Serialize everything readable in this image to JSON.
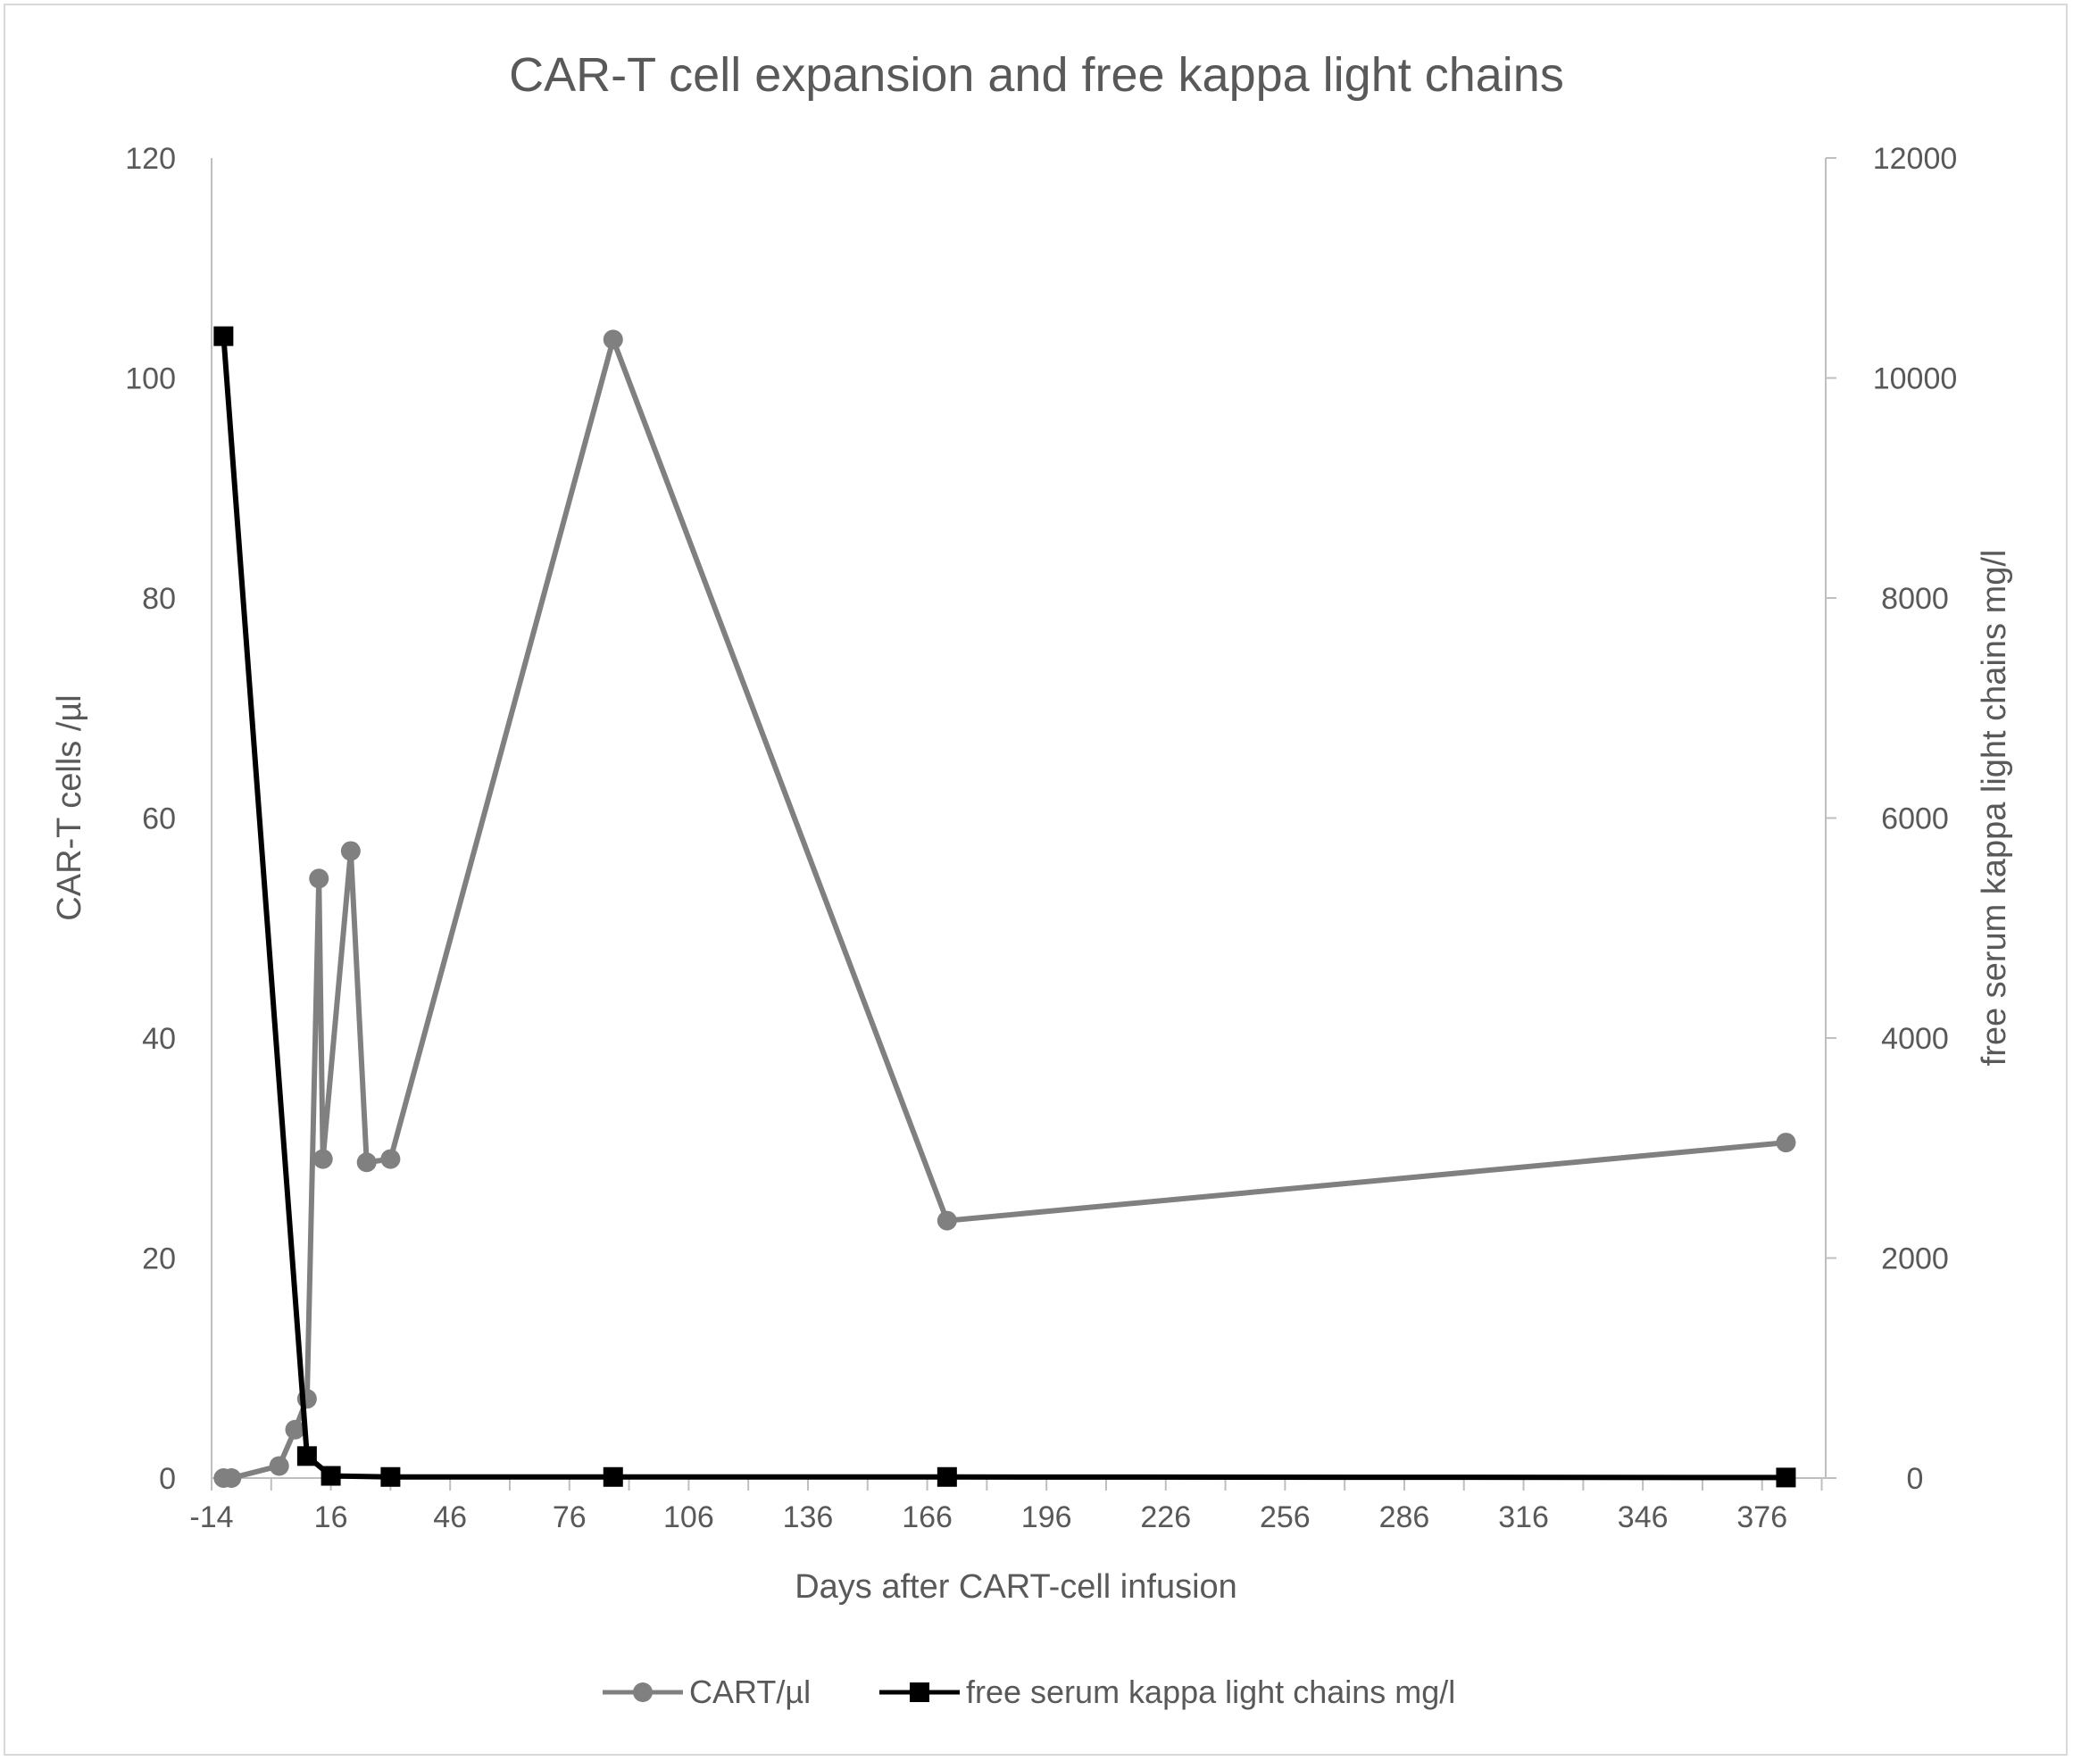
{
  "chart_data": {
    "type": "line",
    "title": "CAR-T cell expansion and free kappa light chains",
    "xlabel": "Days after CART-cell infusion",
    "ylabel": "CAR-T cells /µl",
    "y2label": "free serum kappa light chains mg/l",
    "xlim": [
      -14,
      392
    ],
    "ylim": [
      0,
      120
    ],
    "y2lim": [
      0,
      12000
    ],
    "x_ticks": [
      "-14",
      "16",
      "46",
      "76",
      "106",
      "136",
      "166",
      "196",
      "226",
      "256",
      "286",
      "316",
      "346",
      "376"
    ],
    "y_ticks": [
      "0",
      "20",
      "40",
      "60",
      "80",
      "100",
      "120"
    ],
    "y2_ticks": [
      "0",
      "2000",
      "4000",
      "6000",
      "8000",
      "10000",
      "12000"
    ],
    "grid": false,
    "legend_position": "bottom",
    "series": [
      {
        "name": "CART/µl",
        "axis": "left",
        "color": "#808080",
        "marker": "circle",
        "x": [
          -11,
          -9,
          3,
          7,
          10,
          13,
          14,
          21,
          25,
          31,
          87,
          171,
          382
        ],
        "y": [
          0,
          0,
          1.1,
          4.4,
          7.2,
          54.5,
          29,
          57,
          28.7,
          29,
          103.5,
          23.4,
          30.5
        ]
      },
      {
        "name": "free serum kappa light chains mg/l",
        "axis": "right",
        "color": "#000000",
        "marker": "square",
        "x": [
          -11,
          10,
          16,
          31,
          87,
          171,
          382
        ],
        "y": [
          10380,
          200,
          20,
          10,
          10,
          10,
          5
        ]
      }
    ]
  }
}
